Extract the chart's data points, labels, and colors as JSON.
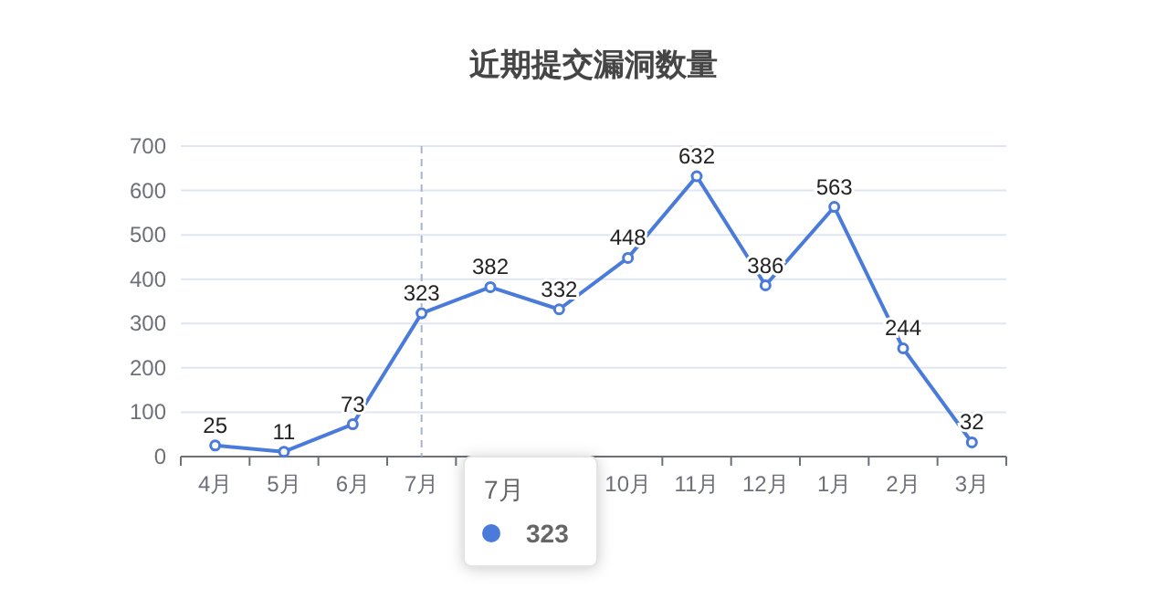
{
  "chart_data": {
    "type": "line",
    "title": "近期提交漏洞数量",
    "categories": [
      "4月",
      "5月",
      "6月",
      "7月",
      null,
      null,
      "10月",
      "11月",
      "12月",
      "1月",
      "2月",
      "3月"
    ],
    "series": [
      {
        "color": "#4a7bdb",
        "values": [
          25,
          11,
          73,
          323,
          382,
          332,
          448,
          632,
          386,
          563,
          244,
          32
        ]
      }
    ],
    "ylim": [
      0,
      700
    ],
    "yticks": [
      0,
      100,
      200,
      300,
      400,
      500,
      600,
      700
    ],
    "grid": "y",
    "marker": "circle",
    "line_style": "solid",
    "data_labels": true,
    "ref_lines": [
      {
        "axis": "x",
        "value": "7月",
        "line_style": "dashed",
        "color": "#a8b4cc"
      }
    ],
    "annotations": [
      "7月",
      "323"
    ]
  }
}
